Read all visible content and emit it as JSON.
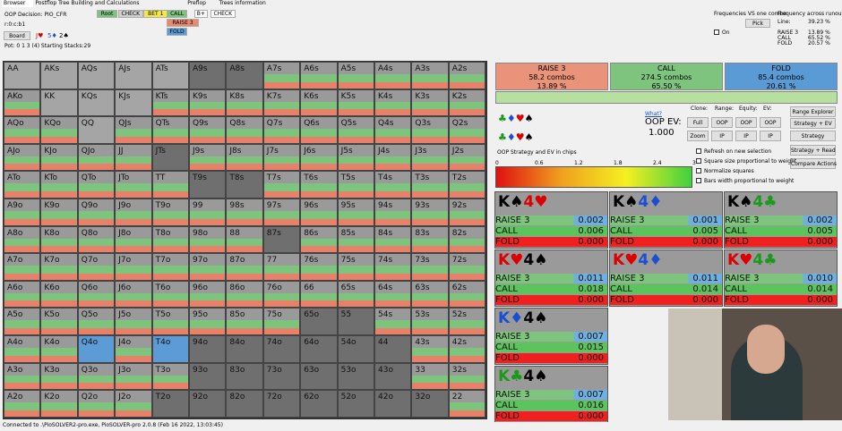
{
  "tabs": [
    "Browser",
    "Postflop Tree Building and Calculations",
    "Preflop",
    "Trees information"
  ],
  "info": {
    "decision": "OOP Decision:  PIO_CFR",
    "line": "r:0:c:b1",
    "board_button": "Board",
    "board": [
      "J♥",
      "5♦",
      "2♠"
    ],
    "pot": "Pot: 0 1 3 (4) Starting Stacks:29"
  },
  "actions": [
    "Root",
    "CHECK",
    "BET 1",
    "CALL",
    "RAISE 3",
    "FOLD",
    "B+",
    "CHECK"
  ],
  "freq_combo": {
    "title": "Frequencies VS one combo",
    "pick": "Pick",
    "on": "On"
  },
  "runouts": {
    "title": "Frequency across runouts",
    "rows": [
      [
        "Line:",
        "39.23 %"
      ],
      [
        "RAISE 3",
        "13.89 %"
      ],
      [
        "CALL",
        "65.52 %"
      ],
      [
        "FOLD",
        "20.57 %"
      ]
    ]
  },
  "summary": [
    {
      "action": "RAISE 3",
      "combos": "58.2 combos",
      "pct": "13.89 %"
    },
    {
      "action": "CALL",
      "combos": "274.5 combos",
      "pct": "65.50 %"
    },
    {
      "action": "FOLD",
      "combos": "85.4 combos",
      "pct": "20.61 %"
    }
  ],
  "ev": {
    "link": "What?",
    "label": "OOP EV:",
    "value": "1.000"
  },
  "controls": {
    "headers": [
      "Clone:",
      "Range:",
      "Equity:",
      "EV:"
    ],
    "buttons": [
      "Full",
      "OOP",
      "OOP",
      "OOP",
      "Zoom",
      "IP",
      "IP",
      "IP"
    ],
    "side": [
      "Range Explorer",
      "Strategy + EV",
      "Strategy",
      "Strategy + Read",
      "Compare Actions"
    ],
    "checks": [
      "Refresh on new selection",
      "Square size proportional to weight",
      "Normalize squares",
      "Bars width proportional to weight"
    ]
  },
  "scale": {
    "title": "OOP Strategy and EV in chips",
    "ticks": [
      "0",
      "0.6",
      "1.2",
      "1.8",
      "2.4",
      "3"
    ]
  },
  "grid": [
    [
      "AA",
      "AKs",
      "AQs",
      "AJs",
      "ATs",
      "A9s",
      "A8s",
      "A7s",
      "A6s",
      "A5s",
      "A4s",
      "A3s",
      "A2s"
    ],
    [
      "AKo",
      "KK",
      "KQs",
      "KJs",
      "KTs",
      "K9s",
      "K8s",
      "K7s",
      "K6s",
      "K5s",
      "K4s",
      "K3s",
      "K2s"
    ],
    [
      "AQo",
      "KQo",
      "QQ",
      "QJs",
      "QTs",
      "Q9s",
      "Q8s",
      "Q7s",
      "Q6s",
      "Q5s",
      "Q4s",
      "Q3s",
      "Q2s"
    ],
    [
      "AJo",
      "KJo",
      "QJo",
      "JJ",
      "JTs",
      "J9s",
      "J8s",
      "J7s",
      "J6s",
      "J5s",
      "J4s",
      "J3s",
      "J2s"
    ],
    [
      "ATo",
      "KTo",
      "QTo",
      "JTo",
      "TT",
      "T9s",
      "T8s",
      "T7s",
      "T6s",
      "T5s",
      "T4s",
      "T3s",
      "T2s"
    ],
    [
      "A9o",
      "K9o",
      "Q9o",
      "J9o",
      "T9o",
      "99",
      "98s",
      "97s",
      "96s",
      "95s",
      "94s",
      "93s",
      "92s"
    ],
    [
      "A8o",
      "K8o",
      "Q8o",
      "J8o",
      "T8o",
      "98o",
      "88",
      "87s",
      "86s",
      "85s",
      "84s",
      "83s",
      "82s"
    ],
    [
      "A7o",
      "K7o",
      "Q7o",
      "J7o",
      "T7o",
      "97o",
      "87o",
      "77",
      "76s",
      "75s",
      "74s",
      "73s",
      "72s"
    ],
    [
      "A6o",
      "K6o",
      "Q6o",
      "J6o",
      "T6o",
      "96o",
      "86o",
      "76o",
      "66",
      "65s",
      "64s",
      "63s",
      "62s"
    ],
    [
      "A5o",
      "K5o",
      "Q5o",
      "J5o",
      "T5o",
      "95o",
      "85o",
      "75o",
      "65o",
      "55",
      "54s",
      "53s",
      "52s"
    ],
    [
      "A4o",
      "K4o",
      "Q4o",
      "J4o",
      "T4o",
      "94o",
      "84o",
      "74o",
      "64o",
      "54o",
      "44",
      "43s",
      "42s"
    ],
    [
      "A3o",
      "K3o",
      "Q3o",
      "J3o",
      "T3o",
      "93o",
      "83o",
      "73o",
      "63o",
      "53o",
      "43o",
      "33",
      "32s"
    ],
    [
      "A2o",
      "K2o",
      "Q2o",
      "J2o",
      "T2o",
      "92o",
      "82o",
      "72o",
      "62o",
      "52o",
      "42o",
      "32o",
      "22"
    ]
  ],
  "combos": [
    {
      "hand": [
        "K♠",
        "4♥"
      ],
      "rows": [
        [
          "RAISE 3",
          "0.002"
        ],
        [
          "CALL",
          "0.006"
        ],
        [
          "FOLD",
          "0.000"
        ]
      ]
    },
    {
      "hand": [
        "K♠",
        "4♦"
      ],
      "rows": [
        [
          "RAISE 3",
          "0.001"
        ],
        [
          "CALL",
          "0.005"
        ],
        [
          "FOLD",
          "0.000"
        ]
      ]
    },
    {
      "hand": [
        "K♠",
        "4♣"
      ],
      "rows": [
        [
          "RAISE 3",
          "0.002"
        ],
        [
          "CALL",
          "0.005"
        ],
        [
          "FOLD",
          "0.000"
        ]
      ]
    },
    {
      "hand": [
        "K♥",
        "4♠"
      ],
      "rows": [
        [
          "RAISE 3",
          "0.011"
        ],
        [
          "CALL",
          "0.018"
        ],
        [
          "FOLD",
          "0.000"
        ]
      ]
    },
    {
      "hand": [
        "K♥",
        "4♦"
      ],
      "rows": [
        [
          "RAISE 3",
          "0.011"
        ],
        [
          "CALL",
          "0.014"
        ],
        [
          "FOLD",
          "0.000"
        ]
      ]
    },
    {
      "hand": [
        "K♥",
        "4♣"
      ],
      "rows": [
        [
          "RAISE 3",
          "0.010"
        ],
        [
          "CALL",
          "0.014"
        ],
        [
          "FOLD",
          "0.000"
        ]
      ]
    },
    {
      "hand": [
        "K♦",
        "4♠"
      ],
      "rows": [
        [
          "RAISE 3",
          "0.007"
        ],
        [
          "CALL",
          "0.015"
        ],
        [
          "FOLD",
          "0.000"
        ]
      ]
    },
    {
      "hand": [
        "K♣",
        "4♠"
      ],
      "rows": [
        [
          "RAISE 3",
          "0.007"
        ],
        [
          "CALL",
          "0.016"
        ],
        [
          "FOLD",
          "0.000"
        ]
      ]
    }
  ],
  "status": "Connected to .\\PioSOLVER2-pro.exe, PioSOLVER-pro 2.0.8 (Feb 16 2022, 13:03:45)"
}
